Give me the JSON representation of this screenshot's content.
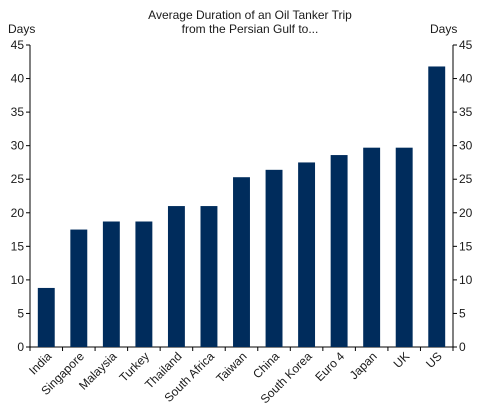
{
  "chart_data": {
    "type": "bar",
    "title": "Average Duration of an Oil Tanker Trip",
    "subtitle": "from the Persian Gulf to...",
    "ylabel_left": "Days",
    "ylabel_right": "Days",
    "ylim": [
      0,
      45
    ],
    "yticks": [
      0,
      5,
      10,
      15,
      20,
      25,
      30,
      35,
      40,
      45
    ],
    "grid": false,
    "categories": [
      "India",
      "Singapore",
      "Malaysia",
      "Turkey",
      "Thailand",
      "South Africa",
      "Taiwan",
      "China",
      "South Korea",
      "Euro 4",
      "Japan",
      "UK",
      "US"
    ],
    "values": [
      8.8,
      17.5,
      18.7,
      18.7,
      21,
      21,
      25.3,
      26.4,
      27.5,
      28.6,
      29.7,
      29.7,
      41.8
    ],
    "bar_color": "#002c5c"
  }
}
